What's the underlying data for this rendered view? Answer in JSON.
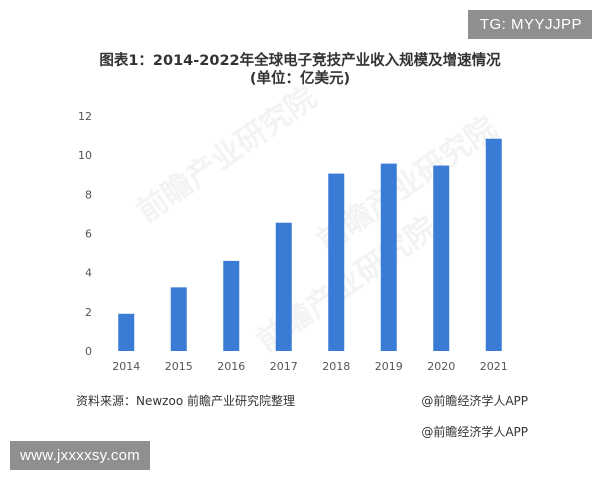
{
  "badges": {
    "tg": "TG: MYYJJPP",
    "url": "www.jxxxxsy.com"
  },
  "chart_data": {
    "type": "bar",
    "title": "图表1：2014-2022年全球电子竞技产业收入规模及增速情况",
    "subtitle": "(单位：亿美元)",
    "categories": [
      "2014",
      "2015",
      "2016",
      "2017",
      "2018",
      "2019",
      "2020",
      "2021"
    ],
    "values": [
      1.9,
      3.25,
      4.6,
      6.55,
      9.06,
      9.57,
      9.47,
      10.84
    ],
    "ylim": [
      0,
      12
    ],
    "yticks": [
      "0",
      "2",
      "4",
      "6",
      "8",
      "10",
      "12"
    ],
    "grid": false,
    "bar_color": "#3a7bd5"
  },
  "footer": {
    "source": "资料来源：Newzoo 前瞻产业研究院整理",
    "brand": "@前瞻经济学人APP",
    "brand_second": "@前瞻经济学人APP"
  },
  "watermarks": [
    "前瞻产业研究院",
    "前瞻产业研究院",
    "前瞻产业研究院"
  ]
}
